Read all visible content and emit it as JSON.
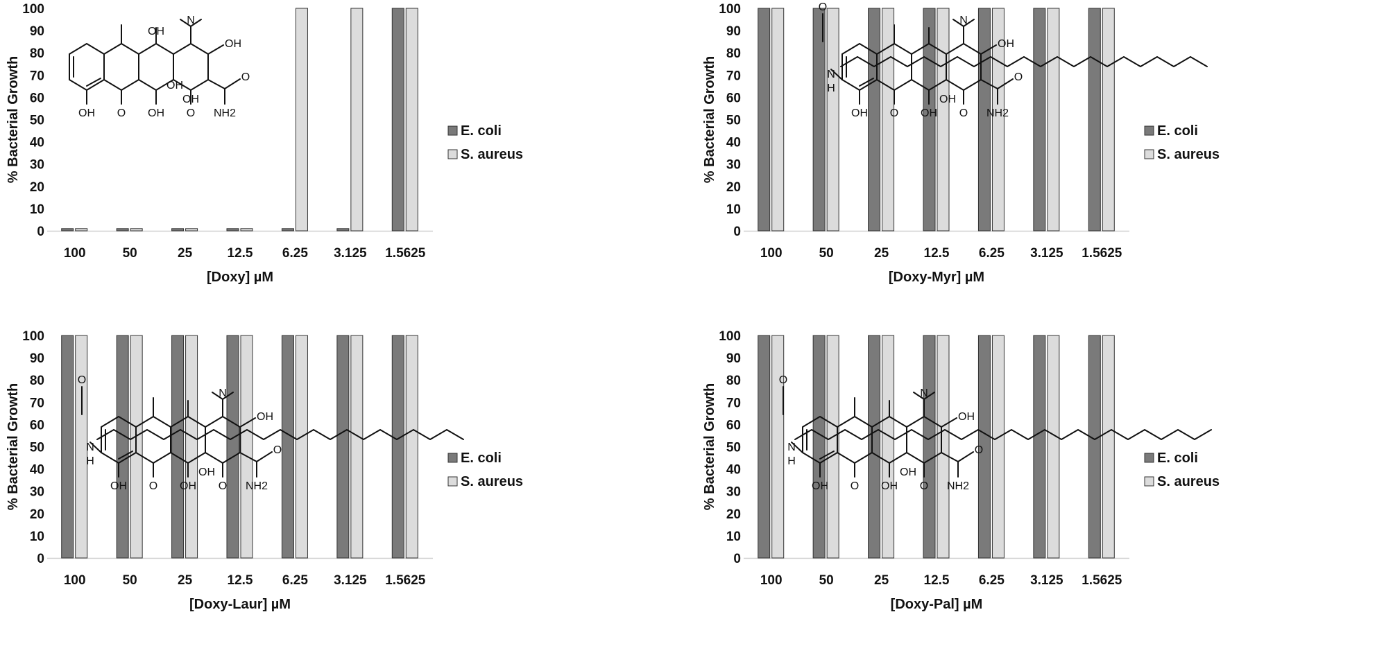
{
  "chart_data": [
    {
      "type": "bar",
      "xlabel": "[Doxy] µM",
      "ylabel": "% Bacterial Growth",
      "ylim": [
        0,
        100
      ],
      "yticks": [
        0,
        10,
        20,
        30,
        40,
        50,
        60,
        70,
        80,
        90,
        100
      ],
      "categories": [
        "100",
        "50",
        "25",
        "12.5",
        "6.25",
        "3.125",
        "1.5625"
      ],
      "series": [
        {
          "name": "E. coli",
          "values": [
            1,
            1,
            1,
            1,
            1,
            1,
            100
          ]
        },
        {
          "name": "S. aureus",
          "values": [
            1,
            1,
            1,
            1,
            100,
            100,
            100
          ]
        }
      ],
      "legend": "right",
      "grid": false,
      "colors": {
        "E. coli": "#7a7a7a",
        "S. aureus": "#dcdcdc"
      }
    },
    {
      "type": "bar",
      "xlabel": "[Doxy-Myr] µM",
      "ylabel": "% Bacterial Growth",
      "ylim": [
        0,
        100
      ],
      "yticks": [
        0,
        10,
        20,
        30,
        40,
        50,
        60,
        70,
        80,
        90,
        100
      ],
      "categories": [
        "100",
        "50",
        "25",
        "12.5",
        "6.25",
        "3.125",
        "1.5625"
      ],
      "series": [
        {
          "name": "E. coli",
          "values": [
            100,
            100,
            100,
            100,
            100,
            100,
            100
          ]
        },
        {
          "name": "S. aureus",
          "values": [
            100,
            100,
            100,
            100,
            100,
            100,
            100
          ]
        }
      ],
      "legend": "right",
      "grid": false,
      "colors": {
        "E. coli": "#7a7a7a",
        "S. aureus": "#dcdcdc"
      }
    },
    {
      "type": "bar",
      "xlabel": "[Doxy-Laur] µM",
      "ylabel": "% Bacterial Growth",
      "ylim": [
        0,
        100
      ],
      "yticks": [
        0,
        10,
        20,
        30,
        40,
        50,
        60,
        70,
        80,
        90,
        100
      ],
      "categories": [
        "100",
        "50",
        "25",
        "12.5",
        "6.25",
        "3.125",
        "1.5625"
      ],
      "series": [
        {
          "name": "E. coli",
          "values": [
            100,
            100,
            100,
            100,
            100,
            100,
            100
          ]
        },
        {
          "name": "S. aureus",
          "values": [
            100,
            100,
            100,
            100,
            100,
            100,
            100
          ]
        }
      ],
      "legend": "right",
      "grid": false,
      "colors": {
        "E. coli": "#7a7a7a",
        "S. aureus": "#dcdcdc"
      }
    },
    {
      "type": "bar",
      "xlabel": "[Doxy-Pal] µM",
      "ylabel": "% Bacterial Growth",
      "ylim": [
        0,
        100
      ],
      "yticks": [
        0,
        10,
        20,
        30,
        40,
        50,
        60,
        70,
        80,
        90,
        100
      ],
      "categories": [
        "100",
        "50",
        "25",
        "12.5",
        "6.25",
        "3.125",
        "1.5625"
      ],
      "series": [
        {
          "name": "E. coli",
          "values": [
            100,
            100,
            100,
            100,
            100,
            100,
            100
          ]
        },
        {
          "name": "S. aureus",
          "values": [
            100,
            100,
            100,
            100,
            100,
            100,
            100
          ]
        }
      ],
      "legend": "right",
      "grid": false,
      "colors": {
        "E. coli": "#7a7a7a",
        "S. aureus": "#dcdcdc"
      }
    }
  ],
  "structures": [
    {
      "atom_labels": [
        "OH",
        "OH",
        "OH",
        "OH",
        "OH",
        "O",
        "O",
        "N",
        "NH2",
        "O",
        "OH"
      ]
    },
    {
      "atom_labels": [
        "O",
        "N",
        "H",
        "OH",
        "O",
        "OH",
        "OH",
        "O",
        "NH2",
        "O",
        "OH",
        "N"
      ]
    },
    {
      "atom_labels": [
        "O",
        "N",
        "H",
        "OH",
        "O",
        "OH",
        "OH",
        "O",
        "NH2",
        "O",
        "OH",
        "N"
      ]
    },
    {
      "atom_labels": [
        "O",
        "N",
        "H",
        "OH",
        "O",
        "OH",
        "OH",
        "O",
        "NH2",
        "O",
        "OH",
        "N"
      ]
    }
  ]
}
